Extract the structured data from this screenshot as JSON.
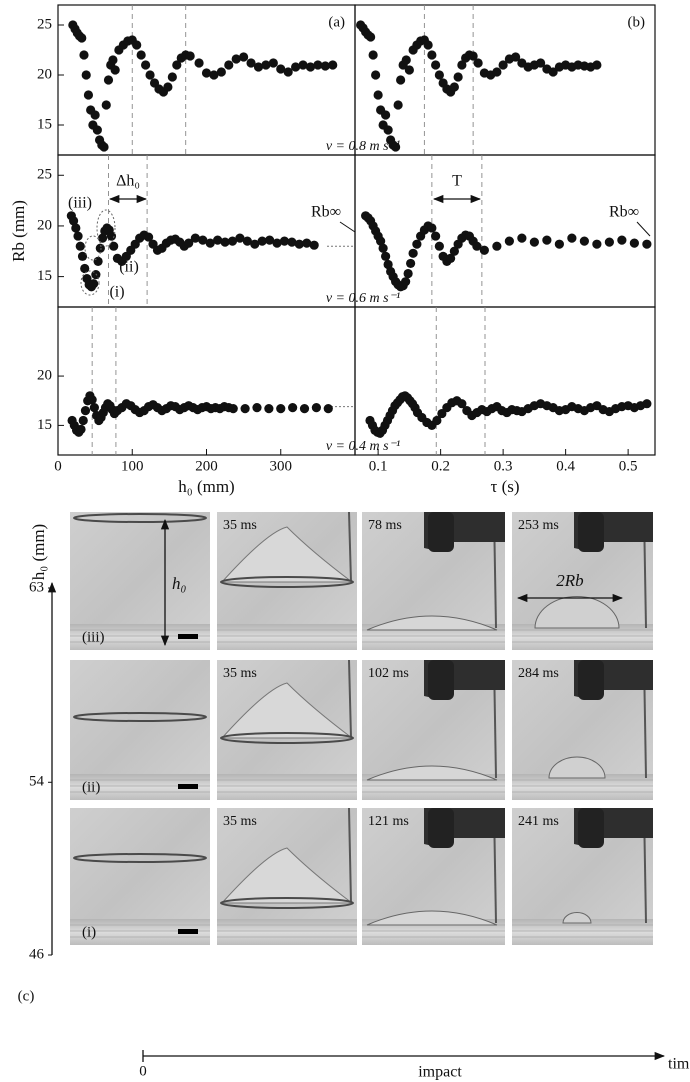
{
  "chart_data": [
    {
      "type": "scatter",
      "label": "(a)",
      "velocity": "v = 0.8 m s⁻¹",
      "xlim": [
        0,
        400
      ],
      "ylim": [
        12,
        27
      ],
      "yticks": [
        15,
        20,
        25
      ],
      "vlines": [
        100,
        172
      ],
      "series": [
        {
          "color": "#111111",
          "x": [
            20,
            23,
            26,
            29,
            32,
            35,
            38,
            41,
            44,
            47,
            50,
            53,
            56,
            59,
            62,
            65,
            68,
            71,
            74,
            77,
            82,
            88,
            94,
            100,
            106,
            112,
            118,
            124,
            130,
            136,
            142,
            148,
            154,
            160,
            166,
            172,
            178,
            190,
            200,
            210,
            220,
            230,
            240,
            250,
            260,
            270,
            280,
            290,
            300,
            310,
            320,
            330,
            340,
            350,
            360,
            370
          ],
          "values": [
            25,
            24.6,
            24.2,
            23.9,
            23.7,
            22,
            20,
            18,
            16.5,
            15,
            16,
            14.5,
            13.5,
            13,
            12.8,
            17,
            19.5,
            21,
            21.5,
            20.5,
            22.5,
            23,
            23.4,
            23.5,
            23,
            22,
            21,
            20,
            19.2,
            18.6,
            18.3,
            18.8,
            19.8,
            21,
            21.7,
            22,
            21.9,
            21.2,
            20.2,
            20,
            20.3,
            21,
            21.6,
            21.8,
            21.2,
            20.8,
            21,
            21.2,
            20.6,
            20.3,
            20.8,
            21,
            20.8,
            21,
            20.9,
            21
          ]
        }
      ]
    },
    {
      "type": "scatter",
      "label": "(b)",
      "xlim": [
        0.063,
        0.543
      ],
      "ylim": [
        12,
        27
      ],
      "vlines": [
        0.174,
        0.252
      ],
      "series": [
        {
          "color": "#111111",
          "x": [
            0.072,
            0.076,
            0.08,
            0.084,
            0.088,
            0.092,
            0.096,
            0.1,
            0.104,
            0.108,
            0.112,
            0.116,
            0.12,
            0.124,
            0.128,
            0.132,
            0.136,
            0.14,
            0.145,
            0.15,
            0.156,
            0.162,
            0.168,
            0.174,
            0.18,
            0.186,
            0.192,
            0.198,
            0.204,
            0.21,
            0.216,
            0.222,
            0.228,
            0.234,
            0.24,
            0.246,
            0.252,
            0.26,
            0.27,
            0.28,
            0.29,
            0.3,
            0.31,
            0.32,
            0.33,
            0.34,
            0.35,
            0.36,
            0.37,
            0.38,
            0.39,
            0.4,
            0.41,
            0.42,
            0.43,
            0.44,
            0.45
          ],
          "values": [
            25,
            24.7,
            24.3,
            24,
            23.8,
            22,
            20,
            18,
            16.5,
            15,
            16,
            14.5,
            13.5,
            13,
            12.8,
            17,
            19.5,
            21,
            21.5,
            20.5,
            22.5,
            23,
            23.4,
            23.5,
            23,
            22,
            21,
            20,
            19.2,
            18.6,
            18.3,
            18.8,
            19.8,
            21,
            21.7,
            22,
            21.9,
            21.2,
            20.2,
            20,
            20.3,
            21,
            21.6,
            21.8,
            21.2,
            20.8,
            21,
            21.2,
            20.6,
            20.3,
            20.8,
            21,
            20.8,
            21,
            20.9,
            20.8,
            21
          ]
        }
      ]
    },
    {
      "type": "scatter",
      "velocity": "v = 0.6 m s⁻¹",
      "ylabel": "Rb (mm)",
      "xlim": [
        0,
        400
      ],
      "ylim": [
        12,
        27
      ],
      "yticks": [
        15,
        20,
        25
      ],
      "vlines": [
        68,
        120
      ],
      "hline": 18,
      "annotations": [
        "Δh₀",
        "(iii)",
        "(ii)",
        "(i)",
        "Rb∞"
      ],
      "series": [
        {
          "color": "#111111",
          "x": [
            18,
            21,
            24,
            27,
            30,
            33,
            36,
            39,
            42,
            45,
            48,
            51,
            54,
            57,
            60,
            63,
            66,
            69,
            72,
            75,
            80,
            86,
            92,
            98,
            104,
            110,
            116,
            122,
            128,
            134,
            140,
            146,
            152,
            158,
            164,
            170,
            176,
            185,
            195,
            205,
            215,
            225,
            235,
            245,
            255,
            265,
            275,
            285,
            295,
            305,
            315,
            325,
            335,
            345
          ],
          "values": [
            21,
            20.5,
            19.8,
            19,
            18,
            17,
            15.8,
            14.8,
            14.2,
            14,
            14.3,
            15.2,
            16.5,
            17.8,
            18.8,
            19.5,
            19.8,
            19.6,
            19,
            18,
            16.8,
            16.5,
            17,
            17.6,
            18.2,
            18.8,
            19.1,
            18.9,
            18.2,
            17.6,
            17.8,
            18.3,
            18.6,
            18.7,
            18.4,
            18,
            18.3,
            18.8,
            18.6,
            18.3,
            18.6,
            18.4,
            18.5,
            18.8,
            18.5,
            18.2,
            18.5,
            18.6,
            18.3,
            18.5,
            18.4,
            18.2,
            18.3,
            18.1
          ]
        }
      ]
    },
    {
      "type": "scatter",
      "xlim": [
        0.063,
        0.543
      ],
      "ylim": [
        12,
        27
      ],
      "vlines": [
        0.186,
        0.266
      ],
      "annotations": [
        "T",
        "Rb∞"
      ],
      "series": [
        {
          "color": "#111111",
          "x": [
            0.08,
            0.084,
            0.088,
            0.092,
            0.096,
            0.1,
            0.104,
            0.108,
            0.112,
            0.116,
            0.12,
            0.124,
            0.128,
            0.132,
            0.136,
            0.14,
            0.144,
            0.148,
            0.152,
            0.156,
            0.162,
            0.168,
            0.174,
            0.18,
            0.186,
            0.192,
            0.198,
            0.204,
            0.21,
            0.216,
            0.222,
            0.228,
            0.234,
            0.24,
            0.246,
            0.252,
            0.258,
            0.27,
            0.29,
            0.31,
            0.33,
            0.35,
            0.37,
            0.39,
            0.41,
            0.43,
            0.45,
            0.47,
            0.49,
            0.51,
            0.53
          ],
          "values": [
            21,
            20.8,
            20.5,
            20,
            19.5,
            19,
            18.5,
            17.8,
            17,
            16.2,
            15.5,
            15,
            14.5,
            14.2,
            14,
            14.1,
            14.5,
            15.3,
            16.3,
            17.3,
            18.2,
            19,
            19.6,
            20,
            19.8,
            19,
            18,
            17,
            16.5,
            16.8,
            17.5,
            18.2,
            18.8,
            19.1,
            19,
            18.5,
            18,
            17.6,
            18,
            18.5,
            18.8,
            18.4,
            18.6,
            18.2,
            18.8,
            18.5,
            18.2,
            18.4,
            18.6,
            18.3,
            18.2
          ]
        }
      ]
    },
    {
      "type": "scatter",
      "velocity": "v = 0.4 m s⁻¹",
      "xlabel": "h₀ (mm)",
      "xlim": [
        0,
        400
      ],
      "ylim": [
        12,
        27
      ],
      "xticks": [
        0,
        100,
        200,
        300
      ],
      "yticks": [
        15,
        20
      ],
      "vlines": [
        46,
        78
      ],
      "hline": 16.9,
      "series": [
        {
          "color": "#111111",
          "x": [
            19,
            22,
            25,
            28,
            31,
            34,
            37,
            40,
            43,
            46,
            49,
            52,
            55,
            58,
            61,
            64,
            67,
            70,
            73,
            76,
            80,
            86,
            92,
            98,
            104,
            110,
            116,
            122,
            128,
            134,
            140,
            146,
            152,
            158,
            164,
            170,
            176,
            182,
            188,
            194,
            200,
            206,
            212,
            218,
            224,
            230,
            236,
            252,
            268,
            284,
            300,
            316,
            332,
            348,
            364
          ],
          "values": [
            15.5,
            15,
            14.5,
            14.3,
            14.6,
            15.5,
            16.5,
            17.5,
            18,
            17.6,
            16.8,
            16,
            15.5,
            15.8,
            16.3,
            16.8,
            17.2,
            17,
            16.6,
            16.2,
            16.5,
            16.8,
            17.2,
            17,
            16.6,
            16.3,
            16.5,
            16.9,
            17.1,
            16.8,
            16.5,
            16.7,
            17,
            16.9,
            16.6,
            16.8,
            17,
            16.8,
            16.6,
            16.8,
            16.9,
            16.7,
            16.8,
            16.7,
            16.9,
            16.8,
            16.7,
            16.7,
            16.8,
            16.7,
            16.7,
            16.8,
            16.7,
            16.8,
            16.7
          ]
        }
      ]
    },
    {
      "type": "scatter",
      "xlabel": "τ (s)",
      "xlim": [
        0.063,
        0.543
      ],
      "ylim": [
        12,
        27
      ],
      "xticks": [
        0.1,
        0.2,
        0.3,
        0.4,
        0.5
      ],
      "vlines": [
        0.193,
        0.271
      ],
      "series": [
        {
          "color": "#111111",
          "x": [
            0.087,
            0.091,
            0.095,
            0.099,
            0.103,
            0.107,
            0.111,
            0.115,
            0.119,
            0.123,
            0.127,
            0.131,
            0.135,
            0.139,
            0.143,
            0.147,
            0.151,
            0.155,
            0.159,
            0.163,
            0.17,
            0.178,
            0.186,
            0.194,
            0.202,
            0.21,
            0.218,
            0.226,
            0.234,
            0.242,
            0.25,
            0.258,
            0.266,
            0.274,
            0.282,
            0.29,
            0.298,
            0.306,
            0.314,
            0.322,
            0.33,
            0.34,
            0.35,
            0.36,
            0.37,
            0.38,
            0.39,
            0.4,
            0.41,
            0.42,
            0.43,
            0.44,
            0.45,
            0.46,
            0.47,
            0.48,
            0.49,
            0.5,
            0.51,
            0.52,
            0.53
          ],
          "values": [
            15.5,
            15,
            14.5,
            14.3,
            14.2,
            14.5,
            15,
            15.5,
            16,
            16.5,
            17,
            17.3,
            17.6,
            17.9,
            18,
            17.8,
            17.5,
            17.2,
            16.8,
            16.3,
            15.8,
            15.3,
            15,
            15.5,
            16.2,
            16.8,
            17.3,
            17.5,
            17.2,
            16.5,
            16,
            16.3,
            16.6,
            16.4,
            16.7,
            16.9,
            16.5,
            16.3,
            16.6,
            16.5,
            16.4,
            16.7,
            17,
            17.2,
            17,
            16.8,
            16.5,
            16.6,
            16.9,
            16.7,
            16.5,
            16.8,
            17,
            16.6,
            16.4,
            16.7,
            16.9,
            17,
            16.8,
            17,
            17.2
          ]
        }
      ]
    }
  ],
  "photos": {
    "label": "(c)",
    "axis_label": "h₀ (mm)",
    "ylim": [
      46,
      63
    ],
    "yticks": [
      63,
      54,
      46
    ],
    "h0_label": "h₀",
    "diameter_label": "2Rb",
    "rows": [
      {
        "label": "(iii)",
        "times": [
          "35 ms",
          "78 ms",
          "253 ms"
        ]
      },
      {
        "label": "(ii)",
        "times": [
          "35 ms",
          "102 ms",
          "284 ms"
        ]
      },
      {
        "label": "(i)",
        "times": [
          "35 ms",
          "121 ms",
          "241 ms"
        ]
      }
    ],
    "time_axis": {
      "start": 0,
      "middle": "impact",
      "end": "time"
    }
  }
}
